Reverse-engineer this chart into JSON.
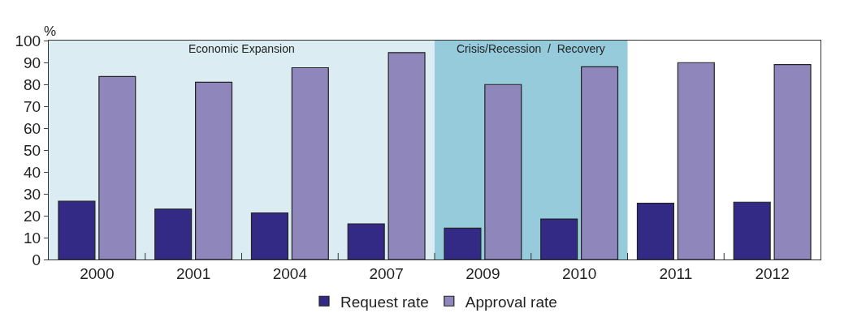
{
  "chart_data": {
    "type": "bar",
    "ylabel": "%",
    "categories": [
      "2000",
      "2001",
      "2004",
      "2007",
      "2009",
      "2010",
      "2011",
      "2012"
    ],
    "series": [
      {
        "name": "Request rate",
        "color": "#332a86",
        "values": [
          26.6,
          23.0,
          21.3,
          16.3,
          14.3,
          18.5,
          25.7,
          26.2
        ]
      },
      {
        "name": "Approval rate",
        "color": "#8f86bb",
        "values": [
          83.6,
          81.0,
          87.6,
          94.5,
          79.9,
          88.0,
          89.9,
          89.0
        ]
      }
    ],
    "ylim": [
      0,
      100
    ],
    "yticks": [
      0,
      10,
      20,
      30,
      40,
      50,
      60,
      70,
      80,
      90,
      100
    ],
    "bands": [
      {
        "axis": "x",
        "from": "2000",
        "to": "2007",
        "label": "Economic Expansion",
        "color": "#dbedf2"
      },
      {
        "axis": "x",
        "from": "2009",
        "to": "2010",
        "label": "Crisis/Recession  /  Recovery",
        "color": "#95cbdb"
      }
    ],
    "legend": "bottom",
    "grid": false
  }
}
